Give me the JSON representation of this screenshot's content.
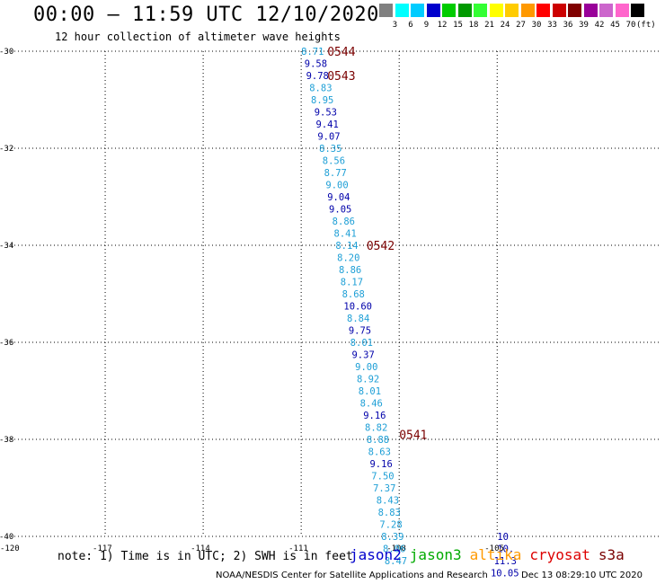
{
  "title": "00:00 – 11:59 UTC 12/10/2020",
  "subtitle": "12 hour collection of altimeter wave heights",
  "legend": {
    "colors": [
      "#808080",
      "#00ffff",
      "#00ccff",
      "#0000cd",
      "#00cc00",
      "#009900",
      "#33ff33",
      "#ffff00",
      "#ffcc00",
      "#ff9900",
      "#ff0000",
      "#cc0000",
      "#800000",
      "#990099",
      "#cc66cc",
      "#ff66cc",
      "#000000"
    ],
    "labels": [
      "3",
      "6",
      "9",
      "12",
      "15",
      "18",
      "21",
      "24",
      "27",
      "30",
      "33",
      "36",
      "39",
      "42",
      "45",
      "70"
    ],
    "unit": "(ft)"
  },
  "chart_data": {
    "type": "scatter",
    "xlim": [
      -120,
      -100
    ],
    "ylim": [
      -40,
      -30
    ],
    "x_ticks": [
      -120,
      -117,
      -114,
      -111,
      -108,
      -105
    ],
    "x_tick_labels": [
      "-120",
      "-117",
      "-114",
      "-111",
      "-108",
      "-105"
    ],
    "y_ticks": [
      -30,
      -32,
      -34,
      -36,
      -38,
      -40
    ],
    "y_tick_labels": [
      "-30",
      "-32",
      "-34",
      "-36",
      "-38",
      "-40"
    ],
    "grid": true,
    "points": [
      {
        "lon": -111.0,
        "lat": -30.0,
        "value": "8.71",
        "color": "#1e9fd6"
      },
      {
        "lon": -110.9,
        "lat": -30.25,
        "value": "9.58",
        "color": "#0000aa"
      },
      {
        "lon": -110.85,
        "lat": -30.5,
        "value": "9.78",
        "color": "#0000aa"
      },
      {
        "lon": -110.75,
        "lat": -30.75,
        "value": "8.83",
        "color": "#1e9fd6"
      },
      {
        "lon": -110.7,
        "lat": -31.0,
        "value": "8.95",
        "color": "#1e9fd6"
      },
      {
        "lon": -110.6,
        "lat": -31.25,
        "value": "9.53",
        "color": "#0000aa"
      },
      {
        "lon": -110.55,
        "lat": -31.5,
        "value": "9.41",
        "color": "#0000aa"
      },
      {
        "lon": -110.5,
        "lat": -31.75,
        "value": "9.07",
        "color": "#0000aa"
      },
      {
        "lon": -110.45,
        "lat": -32.0,
        "value": "8.35",
        "color": "#1e9fd6"
      },
      {
        "lon": -110.35,
        "lat": -32.25,
        "value": "8.56",
        "color": "#1e9fd6"
      },
      {
        "lon": -110.3,
        "lat": -32.5,
        "value": "8.77",
        "color": "#1e9fd6"
      },
      {
        "lon": -110.25,
        "lat": -32.75,
        "value": "9.00",
        "color": "#1e9fd6"
      },
      {
        "lon": -110.2,
        "lat": -33.0,
        "value": "9.04",
        "color": "#0000aa"
      },
      {
        "lon": -110.15,
        "lat": -33.25,
        "value": "9.05",
        "color": "#0000aa"
      },
      {
        "lon": -110.05,
        "lat": -33.5,
        "value": "8.86",
        "color": "#1e9fd6"
      },
      {
        "lon": -110.0,
        "lat": -33.75,
        "value": "8.41",
        "color": "#1e9fd6"
      },
      {
        "lon": -109.95,
        "lat": -34.0,
        "value": "8.14",
        "color": "#1e9fd6"
      },
      {
        "lon": -109.9,
        "lat": -34.25,
        "value": "8.20",
        "color": "#1e9fd6"
      },
      {
        "lon": -109.85,
        "lat": -34.5,
        "value": "8.86",
        "color": "#1e9fd6"
      },
      {
        "lon": -109.8,
        "lat": -34.75,
        "value": "8.17",
        "color": "#1e9fd6"
      },
      {
        "lon": -109.75,
        "lat": -35.0,
        "value": "8.68",
        "color": "#1e9fd6"
      },
      {
        "lon": -109.7,
        "lat": -35.25,
        "value": "10.60",
        "color": "#0000aa"
      },
      {
        "lon": -109.6,
        "lat": -35.5,
        "value": "8.84",
        "color": "#1e9fd6"
      },
      {
        "lon": -109.55,
        "lat": -35.75,
        "value": "9.75",
        "color": "#0000aa"
      },
      {
        "lon": -109.5,
        "lat": -36.0,
        "value": "8.01",
        "color": "#1e9fd6"
      },
      {
        "lon": -109.45,
        "lat": -36.25,
        "value": "9.37",
        "color": "#0000aa"
      },
      {
        "lon": -109.35,
        "lat": -36.5,
        "value": "9.00",
        "color": "#1e9fd6"
      },
      {
        "lon": -109.3,
        "lat": -36.75,
        "value": "8.92",
        "color": "#1e9fd6"
      },
      {
        "lon": -109.25,
        "lat": -37.0,
        "value": "8.01",
        "color": "#1e9fd6"
      },
      {
        "lon": -109.2,
        "lat": -37.25,
        "value": "8.46",
        "color": "#1e9fd6"
      },
      {
        "lon": -109.1,
        "lat": -37.5,
        "value": "9.16",
        "color": "#0000aa"
      },
      {
        "lon": -109.05,
        "lat": -37.75,
        "value": "8.82",
        "color": "#1e9fd6"
      },
      {
        "lon": -109.0,
        "lat": -38.0,
        "value": "8.88",
        "color": "#1e9fd6"
      },
      {
        "lon": -108.95,
        "lat": -38.25,
        "value": "8.63",
        "color": "#1e9fd6"
      },
      {
        "lon": -108.9,
        "lat": -38.5,
        "value": "9.16",
        "color": "#0000aa"
      },
      {
        "lon": -108.85,
        "lat": -38.75,
        "value": "7.50",
        "color": "#1e9fd6"
      },
      {
        "lon": -108.8,
        "lat": -39.0,
        "value": "7.37",
        "color": "#1e9fd6"
      },
      {
        "lon": -108.7,
        "lat": -39.25,
        "value": "8.43",
        "color": "#1e9fd6"
      },
      {
        "lon": -108.65,
        "lat": -39.5,
        "value": "8.83",
        "color": "#1e9fd6"
      },
      {
        "lon": -108.6,
        "lat": -39.75,
        "value": "7.28",
        "color": "#1e9fd6"
      },
      {
        "lon": -108.55,
        "lat": -40.0,
        "value": "8.39",
        "color": "#1e9fd6"
      },
      {
        "lon": -108.5,
        "lat": -40.25,
        "value": "8.06",
        "color": "#1e9fd6"
      },
      {
        "lon": -108.45,
        "lat": -40.5,
        "value": "8.47",
        "color": "#1e9fd6"
      },
      {
        "lon": -105.0,
        "lat": -40.0,
        "value": "10",
        "color": "#0000aa"
      },
      {
        "lon": -105.0,
        "lat": -40.25,
        "value": "10.",
        "color": "#0000aa"
      },
      {
        "lon": -105.1,
        "lat": -40.5,
        "value": "11.3",
        "color": "#0000aa"
      },
      {
        "lon": -105.2,
        "lat": -40.75,
        "value": "10.05",
        "color": "#0000aa"
      }
    ],
    "time_labels": [
      {
        "lon": -110.2,
        "lat": -30.0,
        "text": "0544"
      },
      {
        "lon": -110.2,
        "lat": -30.5,
        "text": "0543"
      },
      {
        "lon": -109.0,
        "lat": -34.0,
        "text": "0542"
      },
      {
        "lon": -108.0,
        "lat": -37.9,
        "text": "0541"
      }
    ]
  },
  "note": "note: 1) Time is in UTC; 2) SWH is in feet",
  "satellites": [
    {
      "name": "jason2",
      "color": "#0000cc"
    },
    {
      "name": "jason3",
      "color": "#00aa00"
    },
    {
      "name": "altika",
      "color": "#ff9900"
    },
    {
      "name": "cryosat",
      "color": "#dd0000"
    },
    {
      "name": "s3a",
      "color": "#7a0000"
    }
  ],
  "credit": "NOAA/NESDIS Center for Satellite Applications and Research",
  "timestamp": "Dec 13 08:29:10 UTC 2020"
}
